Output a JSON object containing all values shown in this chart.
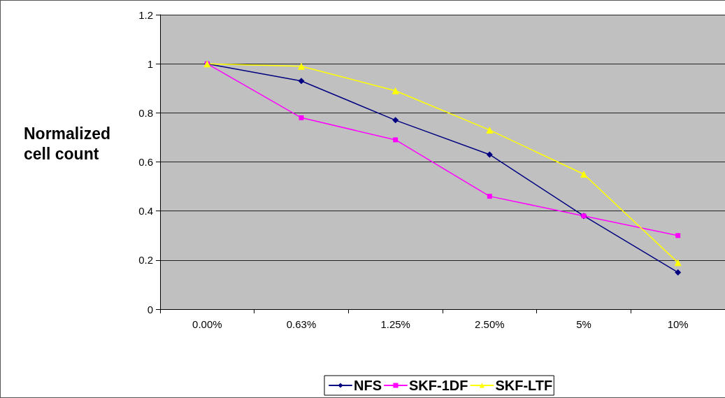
{
  "chart_data": {
    "type": "line",
    "ylabel": "Normalized cell count",
    "categories": [
      "0.00%",
      "0.63%",
      "1.25%",
      "2.50%",
      "5%",
      "10%"
    ],
    "series": [
      {
        "name": "NFS",
        "color": "#000080",
        "marker": "diamond",
        "values": [
          1,
          0.93,
          0.77,
          0.63,
          0.38,
          0.15
        ]
      },
      {
        "name": "SKF-1DF",
        "color": "#ff00ff",
        "marker": "square",
        "values": [
          1,
          0.78,
          0.69,
          0.46,
          0.38,
          0.3
        ]
      },
      {
        "name": "SKF-LTF",
        "color": "#ffff00",
        "marker": "triangle",
        "values": [
          1,
          0.99,
          0.89,
          0.73,
          0.55,
          0.19
        ]
      }
    ],
    "ylim": [
      0,
      1.2
    ],
    "yticks": [
      0,
      0.2,
      0.4,
      0.6,
      0.8,
      1,
      1.2
    ],
    "grid": "y",
    "legend": "bottom"
  }
}
